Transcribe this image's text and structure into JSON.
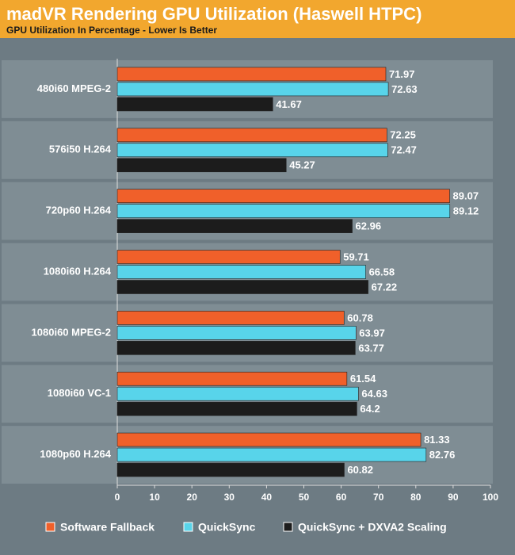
{
  "chart_data": {
    "type": "barh",
    "title": "madVR Rendering GPU Utilization (Haswell HTPC)",
    "subtitle": "GPU Utilization In Percentage - Lower Is Better",
    "categories": [
      "480i60 MPEG-2",
      "576i50 H.264",
      "720p60 H.264",
      "1080i60 H.264",
      "1080i60 MPEG-2",
      "1080i60 VC-1",
      "1080p60 H.264"
    ],
    "series": [
      {
        "name": "Software Fallback",
        "color": "#f0602a",
        "values": [
          71.97,
          72.25,
          89.07,
          59.71,
          60.78,
          61.54,
          81.33
        ]
      },
      {
        "name": "QuickSync",
        "color": "#58d4ea",
        "values": [
          72.63,
          72.47,
          89.12,
          66.58,
          63.97,
          64.63,
          82.76
        ]
      },
      {
        "name": "QuickSync + DXVA2 Scaling",
        "color": "#1c1c1c",
        "values": [
          41.67,
          45.27,
          62.96,
          67.22,
          63.77,
          64.2,
          60.82
        ]
      }
    ],
    "xlim": [
      0,
      100
    ],
    "xticks": [
      0,
      10,
      20,
      30,
      40,
      50,
      60,
      70,
      80,
      90,
      100
    ]
  }
}
